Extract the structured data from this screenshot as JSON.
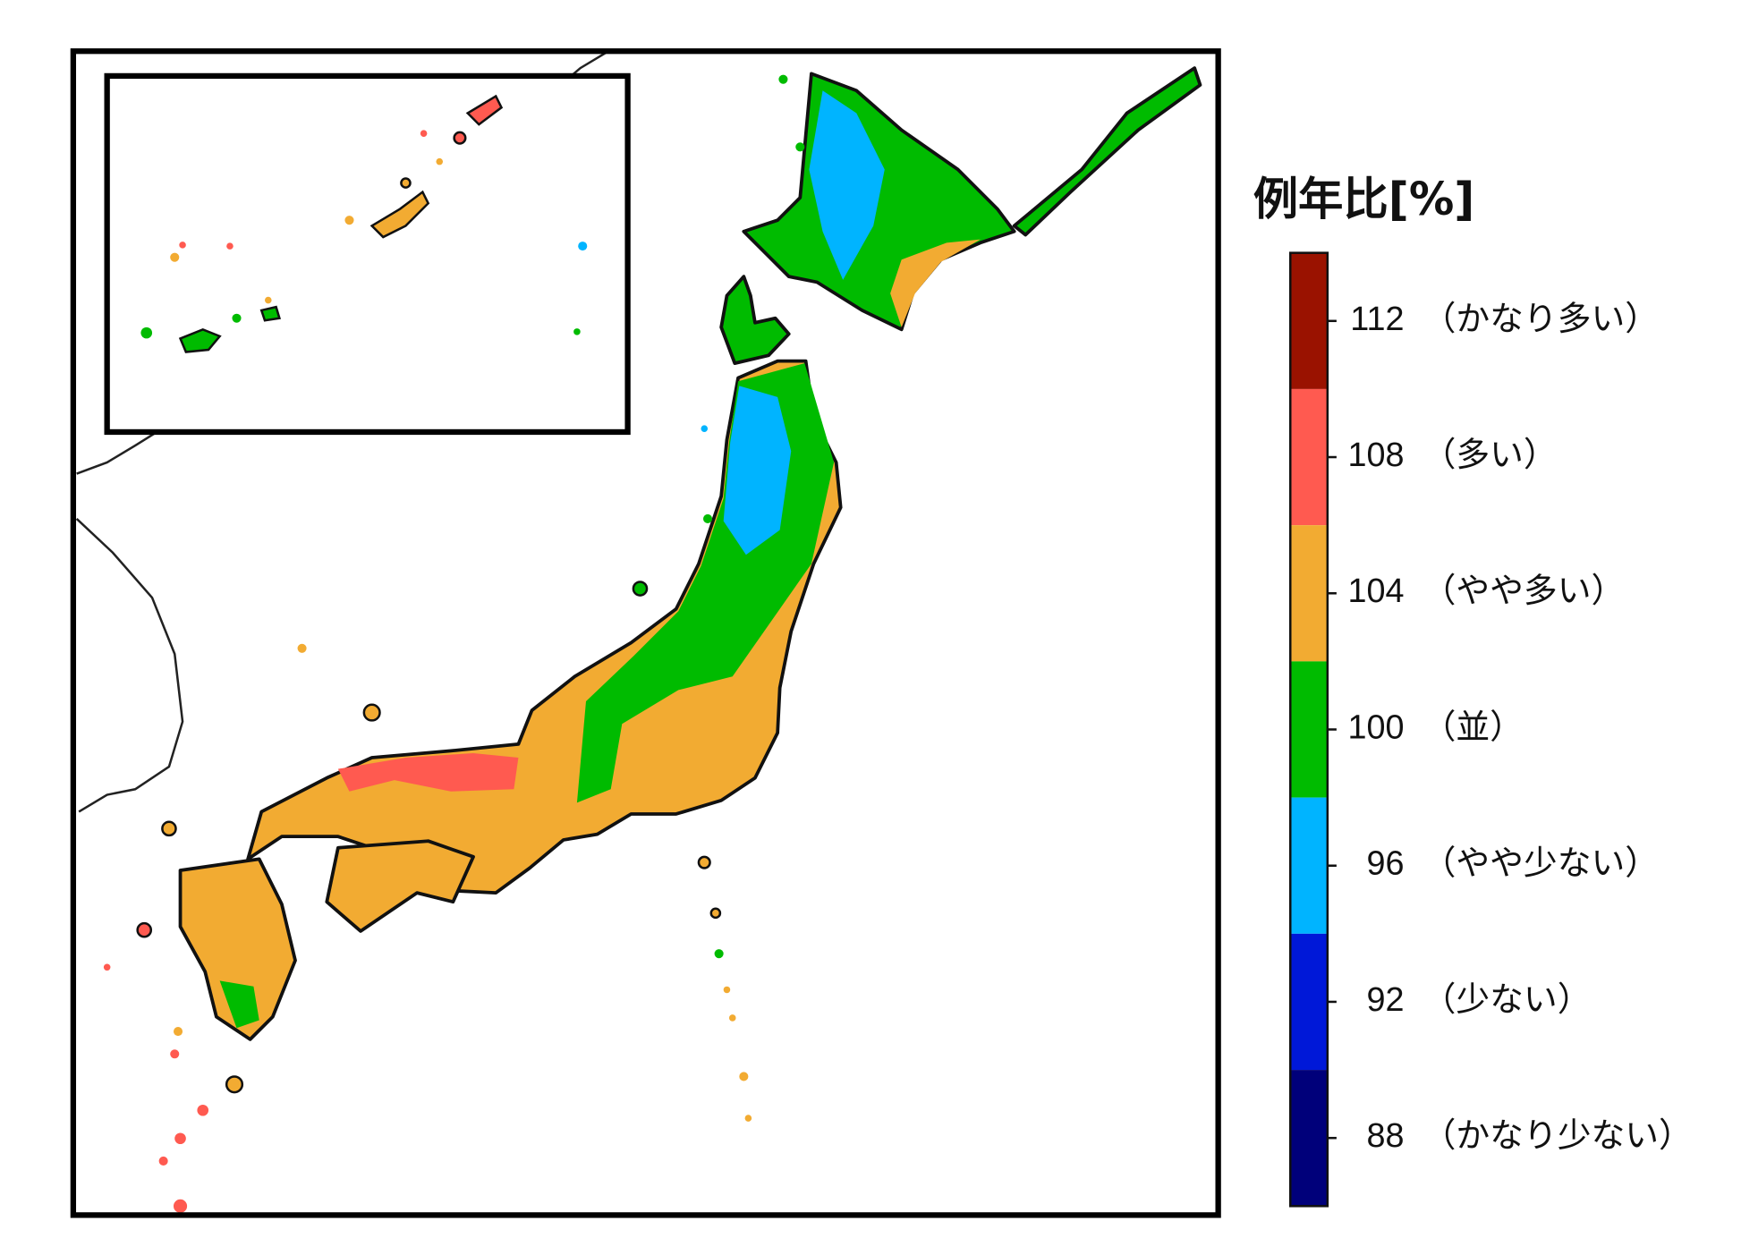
{
  "legend": {
    "title": "例年比[%]",
    "items": [
      {
        "value": 112,
        "label": "（かなり多い）",
        "color": "#9a1200"
      },
      {
        "value": 108,
        "label": "（多い）",
        "color": "#ff5a50"
      },
      {
        "value": 104,
        "label": "（やや多い）",
        "color": "#f2ab32"
      },
      {
        "value": 100,
        "label": "（並）",
        "color": "#00bb00"
      },
      {
        "value": 96,
        "label": "（やや少ない）",
        "color": "#00b4ff"
      },
      {
        "value": 92,
        "label": "（少ない）",
        "color": "#0018d8"
      },
      {
        "value": 88,
        "label": "（かなり少ない）",
        "color": "#00007a"
      }
    ]
  }
}
